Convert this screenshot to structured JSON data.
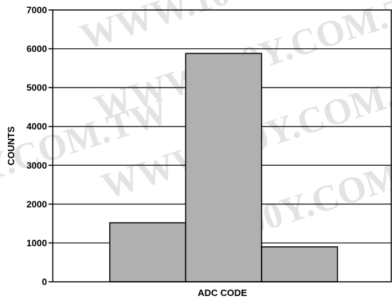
{
  "watermark": "WWW.100Y.COM.TW",
  "chart_data": {
    "type": "bar",
    "categories": [
      "",
      "",
      ""
    ],
    "values": [
      1520,
      5880,
      900
    ],
    "title": "",
    "xlabel": "ADC CODE",
    "ylabel": "COUNTS",
    "ylim": [
      0,
      7000
    ],
    "yticks": [
      0,
      1000,
      2000,
      3000,
      4000,
      5000,
      6000,
      7000
    ],
    "grid": true,
    "bar_color": "#b0b0b0",
    "edge_color": "#000000"
  }
}
